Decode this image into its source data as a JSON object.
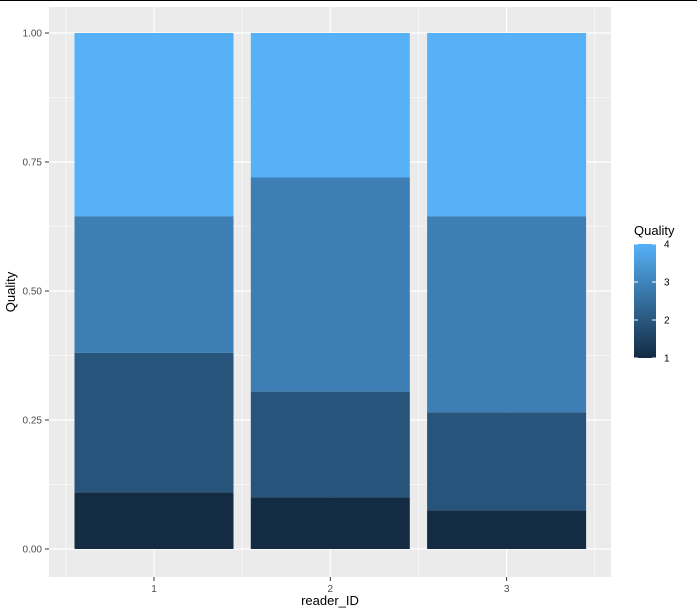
{
  "chart_data": {
    "type": "bar",
    "stacked": true,
    "position": "fill",
    "categories": [
      "1",
      "2",
      "3"
    ],
    "series": [
      {
        "name": "1",
        "color": "#132b43",
        "values": [
          0.11,
          0.1,
          0.075
        ]
      },
      {
        "name": "2",
        "color": "#26547a",
        "values": [
          0.27,
          0.205,
          0.19
        ]
      },
      {
        "name": "3",
        "color": "#3d7fb4",
        "values": [
          0.265,
          0.415,
          0.38
        ]
      },
      {
        "name": "4",
        "color": "#56b1f7",
        "values": [
          0.355,
          0.28,
          0.355
        ]
      }
    ],
    "xlabel": "reader_ID",
    "ylabel": "Quality",
    "ylim": [
      0,
      1.05
    ],
    "y_ticks": [
      "0.00",
      "0.25",
      "0.50",
      "0.75",
      "1.00"
    ],
    "y_tick_values": [
      0,
      0.25,
      0.5,
      0.75,
      1.0
    ],
    "grid": true,
    "legend": {
      "title": "Quality",
      "position": "right",
      "type": "colorbar",
      "labels": [
        "4",
        "3",
        "2",
        "1"
      ],
      "low_color": "#132b43",
      "high_color": "#56b1f7"
    },
    "panel_color": "#ebebeb"
  }
}
